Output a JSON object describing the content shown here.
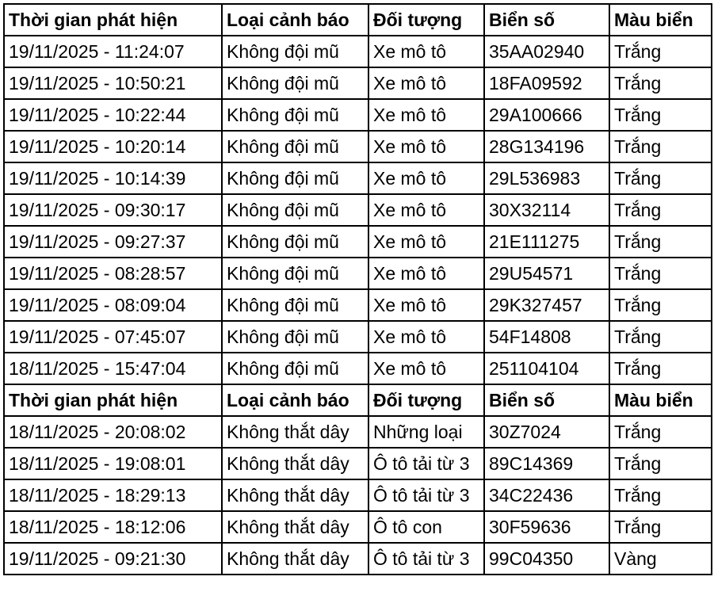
{
  "tables": [
    {
      "header": [
        "Thời gian phát hiện",
        "Loại cảnh báo",
        "Đối tượng",
        "Biển số",
        "Màu biển"
      ],
      "rows": [
        [
          "19/11/2025 - 11:24:07",
          "Không đội mũ",
          "Xe mô tô",
          "35AA02940",
          "Trắng"
        ],
        [
          "19/11/2025 - 10:50:21",
          "Không đội mũ",
          "Xe mô tô",
          "18FA09592",
          "Trắng"
        ],
        [
          "19/11/2025 - 10:22:44",
          "Không đội mũ",
          "Xe mô tô",
          "29A100666",
          "Trắng"
        ],
        [
          "19/11/2025 - 10:20:14",
          "Không đội mũ",
          "Xe mô tô",
          "28G134196",
          "Trắng"
        ],
        [
          "19/11/2025 - 10:14:39",
          "Không đội mũ",
          "Xe mô tô",
          "29L536983",
          "Trắng"
        ],
        [
          "19/11/2025 - 09:30:17",
          "Không đội mũ",
          "Xe mô tô",
          "30X32114",
          "Trắng"
        ],
        [
          "19/11/2025 - 09:27:37",
          "Không đội mũ",
          "Xe mô tô",
          "21E111275",
          "Trắng"
        ],
        [
          "19/11/2025 - 08:28:57",
          "Không đội mũ",
          "Xe mô tô",
          "29U54571",
          "Trắng"
        ],
        [
          "19/11/2025 - 08:09:04",
          "Không đội mũ",
          "Xe mô tô",
          "29K327457",
          "Trắng"
        ],
        [
          "19/11/2025 - 07:45:07",
          "Không đội mũ",
          "Xe mô tô",
          "54F14808",
          "Trắng"
        ],
        [
          "18/11/2025 - 15:47:04",
          "Không đội mũ",
          "Xe mô tô",
          "251104104",
          "Trắng"
        ]
      ]
    },
    {
      "header": [
        "Thời gian phát hiện",
        "Loại cảnh báo",
        "Đối tượng",
        "Biển số",
        "Màu biển"
      ],
      "rows": [
        [
          "18/11/2025 - 20:08:02",
          "Không thắt dây",
          "Những loại",
          "30Z7024",
          "Trắng"
        ],
        [
          "18/11/2025 - 19:08:01",
          "Không thắt dây",
          "Ô tô tải từ 3",
          "89C14369",
          "Trắng"
        ],
        [
          "18/11/2025 - 18:29:13",
          "Không thắt dây",
          "Ô tô tải từ 3",
          "34C22436",
          "Trắng"
        ],
        [
          "18/11/2025 - 18:12:06",
          "Không thắt dây",
          "Ô tô con",
          "30F59636",
          "Trắng"
        ],
        [
          "19/11/2025 - 09:21:30",
          "Không thắt dây",
          "Ô tô tải từ 3",
          "99C04350",
          "Vàng"
        ]
      ]
    }
  ]
}
